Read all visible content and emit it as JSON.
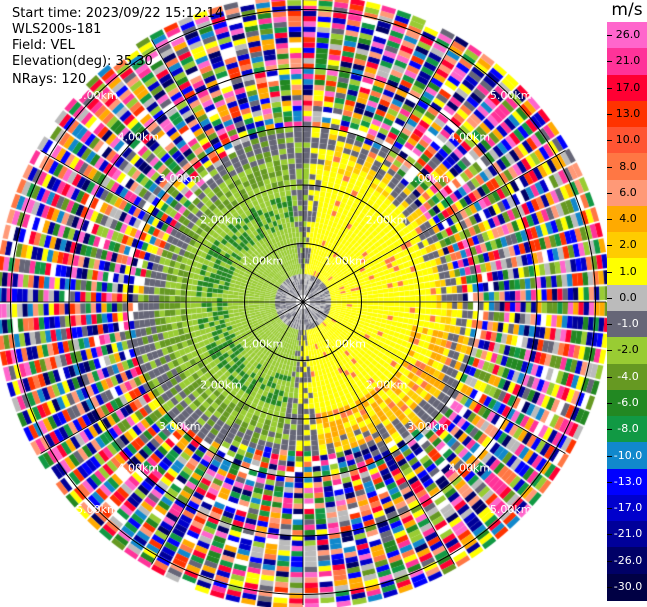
{
  "info": {
    "start_time": "Start time: 2023/09/22 15:12:14",
    "instrument": "WLS200s-181",
    "field": "Field: VEL",
    "elevation": "Elevation(deg): 35.30",
    "nrays": "NRays: 120"
  },
  "colorbar": {
    "unit": "m/s",
    "labels": [
      "26.0",
      "21.0",
      "17.0",
      "13.0",
      "10.0",
      "8.0",
      "6.0",
      "4.0",
      "2.0",
      "1.0",
      "0.0",
      "-1.0",
      "-2.0",
      "-4.0",
      "-6.0",
      "-8.0",
      "-10.0",
      "-13.0",
      "-17.0",
      "-21.0",
      "-26.0",
      "-30.0"
    ],
    "colors": [
      "#ff66cc",
      "#ff3399",
      "#ff0033",
      "#ff3300",
      "#ff5533",
      "#ff7744",
      "#ff9977",
      "#ffaa00",
      "#ffcc00",
      "#ffff00",
      "#bbbbbb",
      "#666677",
      "#99cc33",
      "#669922",
      "#228822",
      "#119944",
      "#1188cc",
      "#0000ff",
      "#0000cc",
      "#000099",
      "#000066",
      "#000044"
    ]
  },
  "chart_data": {
    "type": "heatmap",
    "title": "",
    "field": "VEL",
    "unit": "m/s",
    "elevation_deg": 35.3,
    "nrays": 120,
    "rings_km": [
      1.0,
      2.0,
      3.0,
      4.0,
      5.0
    ],
    "ring_labels": [
      "1.00km",
      "2.00km",
      "3.00km",
      "4.00km",
      "5.00km"
    ],
    "value_range": [
      -30,
      26
    ],
    "inner_signal_region": "yellow/orange positive velocities east, green/gray negative velocities west within ~2.8 km; noisy multicolor returns beyond"
  }
}
